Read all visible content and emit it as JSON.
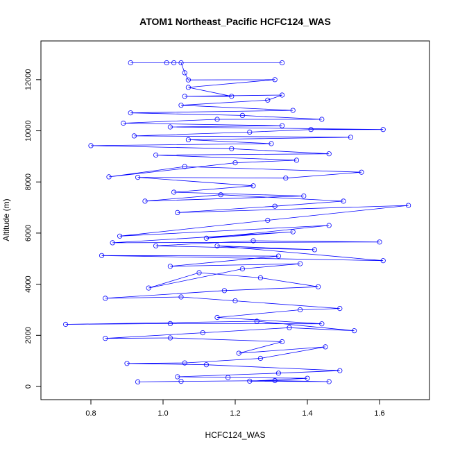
{
  "chart_data": {
    "type": "line",
    "title": "ATOM1 Northeast_Pacific HCFC124_WAS",
    "xlabel": "HCFC124_WAS",
    "ylabel": "Altitude (m)",
    "xlim": [
      0.7,
      1.7
    ],
    "ylim": [
      0,
      13000
    ],
    "x_ticks": [
      0.8,
      1.0,
      1.2,
      1.4,
      1.6
    ],
    "x_tick_labels": [
      "0.8",
      "1.0",
      "1.2",
      "1.4",
      "1.6"
    ],
    "y_ticks": [
      0,
      2000,
      4000,
      6000,
      8000,
      10000,
      12000
    ],
    "y_tick_labels": [
      "0",
      "2000",
      "4000",
      "6000",
      "8000",
      "10000",
      "12000"
    ],
    "grid": false,
    "marker": "open-circle",
    "color": "#0000ff",
    "series": [
      {
        "points": [
          [
            0.93,
            180
          ],
          [
            1.05,
            200
          ],
          [
            1.31,
            230
          ],
          [
            1.46,
            190
          ],
          [
            1.24,
            210
          ],
          [
            1.4,
            320
          ],
          [
            1.18,
            350
          ],
          [
            1.04,
            380
          ],
          [
            1.32,
            520
          ],
          [
            1.49,
            620
          ],
          [
            1.12,
            850
          ],
          [
            0.9,
            900
          ],
          [
            1.06,
            920
          ],
          [
            1.27,
            1100
          ],
          [
            1.45,
            1550
          ],
          [
            1.21,
            1300
          ],
          [
            1.33,
            1750
          ],
          [
            1.02,
            1900
          ],
          [
            0.84,
            1880
          ],
          [
            1.11,
            2100
          ],
          [
            1.35,
            2300
          ],
          [
            1.53,
            2180
          ],
          [
            1.26,
            2550
          ],
          [
            0.73,
            2430
          ],
          [
            1.02,
            2460
          ],
          [
            1.44,
            2450
          ],
          [
            1.15,
            2700
          ],
          [
            1.38,
            3000
          ],
          [
            1.49,
            3050
          ],
          [
            1.2,
            3350
          ],
          [
            1.05,
            3500
          ],
          [
            0.84,
            3450
          ],
          [
            1.17,
            3750
          ],
          [
            1.43,
            3900
          ],
          [
            1.27,
            4250
          ],
          [
            1.1,
            4450
          ],
          [
            0.96,
            3850
          ],
          [
            1.22,
            4600
          ],
          [
            1.38,
            4800
          ],
          [
            1.02,
            4700
          ],
          [
            1.32,
            5100
          ],
          [
            0.83,
            5120
          ],
          [
            1.61,
            4920
          ],
          [
            1.15,
            5500
          ],
          [
            1.42,
            5350
          ],
          [
            0.98,
            5500
          ],
          [
            1.25,
            5700
          ],
          [
            1.6,
            5650
          ],
          [
            0.86,
            5620
          ],
          [
            1.36,
            6050
          ],
          [
            1.12,
            5800
          ],
          [
            1.46,
            6300
          ],
          [
            0.88,
            5880
          ],
          [
            1.29,
            6500
          ],
          [
            1.68,
            7080
          ],
          [
            1.04,
            6800
          ],
          [
            1.31,
            7050
          ],
          [
            1.5,
            7250
          ],
          [
            1.16,
            7500
          ],
          [
            0.95,
            7250
          ],
          [
            1.39,
            7450
          ],
          [
            1.03,
            7600
          ],
          [
            1.25,
            7850
          ],
          [
            0.93,
            8180
          ],
          [
            1.34,
            8150
          ],
          [
            1.55,
            8380
          ],
          [
            1.06,
            8600
          ],
          [
            0.85,
            8200
          ],
          [
            1.2,
            8750
          ],
          [
            1.37,
            8850
          ],
          [
            0.98,
            9050
          ],
          [
            1.46,
            9100
          ],
          [
            1.19,
            9300
          ],
          [
            0.8,
            9420
          ],
          [
            1.3,
            9500
          ],
          [
            1.07,
            9650
          ],
          [
            1.52,
            9750
          ],
          [
            0.92,
            9800
          ],
          [
            1.24,
            9950
          ],
          [
            1.41,
            10050
          ],
          [
            1.61,
            10050
          ],
          [
            1.02,
            10150
          ],
          [
            1.33,
            10200
          ],
          [
            0.89,
            10300
          ],
          [
            1.15,
            10450
          ],
          [
            1.44,
            10450
          ],
          [
            1.22,
            10600
          ],
          [
            0.91,
            10700
          ],
          [
            1.36,
            10800
          ],
          [
            1.05,
            11000
          ],
          [
            1.29,
            11200
          ],
          [
            1.33,
            11400
          ],
          [
            1.06,
            11350
          ],
          [
            1.19,
            11350
          ],
          [
            1.07,
            11700
          ],
          [
            1.31,
            12000
          ],
          [
            1.07,
            11990
          ],
          [
            1.06,
            12270
          ],
          [
            1.05,
            12660
          ],
          [
            0.91,
            12660
          ],
          [
            1.33,
            12660
          ],
          [
            1.03,
            12660
          ],
          [
            1.01,
            12660
          ]
        ]
      }
    ]
  }
}
